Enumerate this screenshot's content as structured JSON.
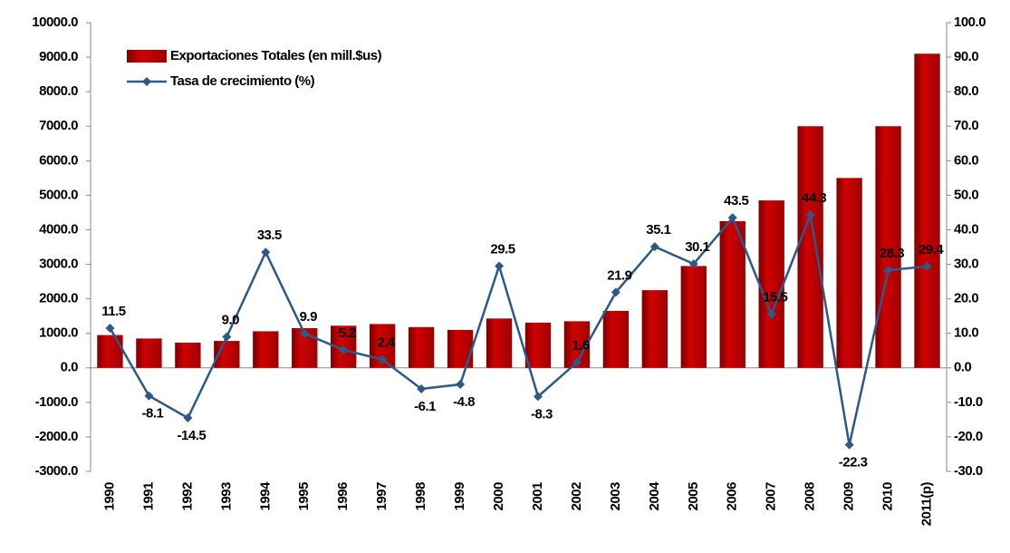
{
  "chart_data": {
    "type": "bar-line",
    "categories": [
      "1990",
      "1991",
      "1992",
      "1993",
      "1994",
      "1995",
      "1996",
      "1997",
      "1998",
      "1999",
      "2000",
      "2001",
      "2002",
      "2003",
      "2004",
      "2005",
      "2006",
      "2007",
      "2008",
      "2009",
      "2010",
      "2011(p)"
    ],
    "series": [
      {
        "name": "Exportaciones Totales (en mill.$us)",
        "type": "bar",
        "color": "#c00000",
        "axis": "y",
        "values": [
          950,
          850,
          730,
          780,
          1060,
          1150,
          1220,
          1270,
          1180,
          1100,
          1430,
          1310,
          1350,
          1650,
          2250,
          2950,
          4250,
          4850,
          7000,
          5500,
          7000,
          9100
        ]
      },
      {
        "name": "Tasa de crecimiento (%)",
        "type": "line",
        "color": "#2b5a8a",
        "axis": "y2",
        "values": [
          11.5,
          -8.1,
          -14.5,
          9.0,
          33.5,
          9.9,
          5.2,
          2.4,
          -6.1,
          -4.8,
          29.5,
          -8.3,
          1.6,
          21.9,
          35.1,
          30.1,
          43.5,
          15.5,
          44.3,
          -22.3,
          28.3,
          29.4
        ],
        "value_labels": [
          "11.5",
          "-8.1",
          "-14.5",
          "9.0",
          "33.5",
          "9.9",
          "5.2",
          "2.4",
          "-6.1",
          "-4.8",
          "29.5",
          "-8.3",
          "1.6",
          "21.9",
          "35.1",
          "30.1",
          "43.5",
          "15.5",
          "44.3",
          "-22.3",
          "28.3",
          "29.4"
        ]
      }
    ],
    "ylim": [
      -3000,
      10000
    ],
    "yticks": [
      {
        "value": -3000,
        "label": "-3000.0"
      },
      {
        "value": -2000,
        "label": "-2000.0"
      },
      {
        "value": -1000,
        "label": "-1000.0"
      },
      {
        "value": 0,
        "label": "0.0"
      },
      {
        "value": 1000,
        "label": "1000.0"
      },
      {
        "value": 2000,
        "label": "2000.0"
      },
      {
        "value": 3000,
        "label": "3000.0"
      },
      {
        "value": 4000,
        "label": "4000.0"
      },
      {
        "value": 5000,
        "label": "5000.0"
      },
      {
        "value": 6000,
        "label": "6000.0"
      },
      {
        "value": 7000,
        "label": "7000.0"
      },
      {
        "value": 8000,
        "label": "8000.0"
      },
      {
        "value": 9000,
        "label": "9000.0"
      },
      {
        "value": 10000,
        "label": "10000.0"
      }
    ],
    "y2lim": [
      -30,
      100
    ],
    "y2ticks": [
      {
        "value": -30,
        "label": "-30.0"
      },
      {
        "value": -20,
        "label": "-20.0"
      },
      {
        "value": -10,
        "label": "-10.0"
      },
      {
        "value": 0,
        "label": "0.0"
      },
      {
        "value": 10,
        "label": "10.0"
      },
      {
        "value": 20,
        "label": "20.0"
      },
      {
        "value": 30,
        "label": "30.0"
      },
      {
        "value": 40,
        "label": "40.0"
      },
      {
        "value": 50,
        "label": "50.0"
      },
      {
        "value": 60,
        "label": "60.0"
      },
      {
        "value": 70,
        "label": "70.0"
      },
      {
        "value": 80,
        "label": "80.0"
      },
      {
        "value": 90,
        "label": "90.0"
      },
      {
        "value": 100,
        "label": "100.0"
      }
    ],
    "grid": false,
    "legend": "upper left"
  }
}
